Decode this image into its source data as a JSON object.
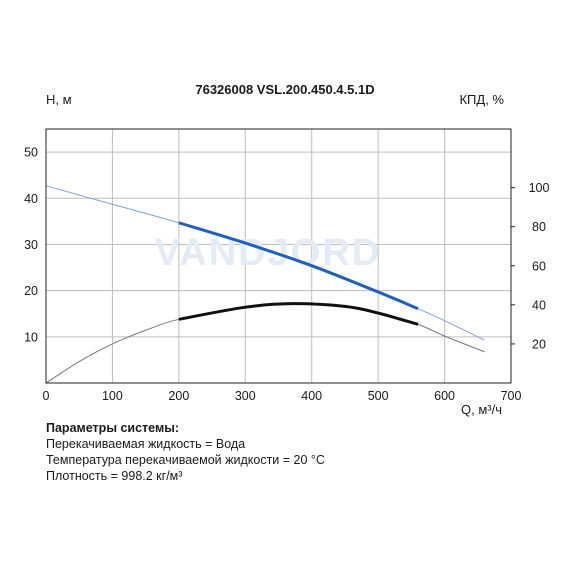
{
  "chart_data": {
    "type": "line",
    "title": "76326008 VSL.200.450.4.5.1D",
    "ylabel": "H, м",
    "y2label": "КПД, %",
    "xlabel": "Q, м³/ч",
    "xlim": [
      0,
      700
    ],
    "ylim": [
      0,
      55
    ],
    "y2lim": [
      0,
      130
    ],
    "x_ticks": [
      "0",
      "100",
      "200",
      "300",
      "400",
      "500",
      "600",
      "700"
    ],
    "y_ticks": [
      "10",
      "20",
      "30",
      "40",
      "50"
    ],
    "y2_ticks": [
      "20",
      "40",
      "60",
      "80",
      "100"
    ],
    "grid": true,
    "watermark": "VANDJORD",
    "series": [
      {
        "id": "head-full",
        "axis": "left",
        "color": "#7ba3d6",
        "width": 1,
        "x": [
          0,
          100,
          200,
          300,
          400,
          500,
          560,
          600,
          660
        ],
        "y": [
          42.7,
          38.7,
          34.7,
          30.3,
          25.4,
          19.7,
          16.1,
          13.5,
          9.3
        ]
      },
      {
        "id": "head-operating",
        "axis": "left",
        "color": "#1f5fc0",
        "width": 3,
        "x": [
          200,
          300,
          400,
          500,
          560
        ],
        "y": [
          34.7,
          30.3,
          25.4,
          19.7,
          16.1
        ]
      },
      {
        "id": "efficiency-full",
        "axis": "right",
        "color": "#777777",
        "width": 1,
        "x": [
          0,
          50,
          100,
          150,
          200,
          300,
          370,
          450,
          500,
          560,
          600,
          660
        ],
        "y": [
          0,
          11,
          20,
          27,
          32.6,
          38.8,
          40.6,
          39.2,
          35.8,
          30,
          24,
          16
        ]
      },
      {
        "id": "efficiency-operating",
        "axis": "right",
        "color": "#111111",
        "width": 3,
        "x": [
          200,
          300,
          370,
          450,
          500,
          560
        ],
        "y": [
          32.6,
          38.8,
          40.6,
          39.2,
          35.8,
          30
        ]
      }
    ]
  },
  "params": {
    "heading": "Параметры системы:",
    "lines": [
      "Перекачиваемая жидкость = Вода",
      "Температура перекачиваемой жидкости = 20 °C",
      "Плотность = 998.2 кг/м³"
    ]
  }
}
